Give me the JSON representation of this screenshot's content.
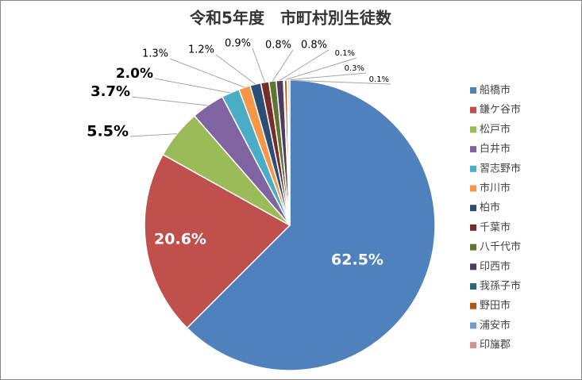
{
  "chart_data": {
    "type": "pie",
    "title": "令和5年度　市町村別生徒数",
    "categories": [
      "船橋市",
      "鎌ケ谷市",
      "松戸市",
      "白井市",
      "習志野市",
      "市川市",
      "柏市",
      "千葉市",
      "八千代市",
      "印西市",
      "我孫子市",
      "野田市",
      "浦安市",
      "印旛郡"
    ],
    "values": [
      62.5,
      20.6,
      5.5,
      3.7,
      2.0,
      1.3,
      1.2,
      0.9,
      0.8,
      0.8,
      0.1,
      0.3,
      0.1,
      0.2
    ],
    "value_labels": [
      "62.5%",
      "20.6%",
      "5.5%",
      "3.7%",
      "2.0%",
      "1.3%",
      "1.2%",
      "0.9%",
      "0.8%",
      "0.8%",
      "0.1%",
      "0.3%",
      "0.1%",
      null
    ],
    "colors": [
      "#4f81bd",
      "#c0504d",
      "#9bbb59",
      "#8064a2",
      "#4bacc6",
      "#f79646",
      "#2c4d75",
      "#772c2a",
      "#5f7530",
      "#4d3b62",
      "#276a7c",
      "#b65708",
      "#729aca",
      "#d19392"
    ],
    "legend": "right"
  }
}
